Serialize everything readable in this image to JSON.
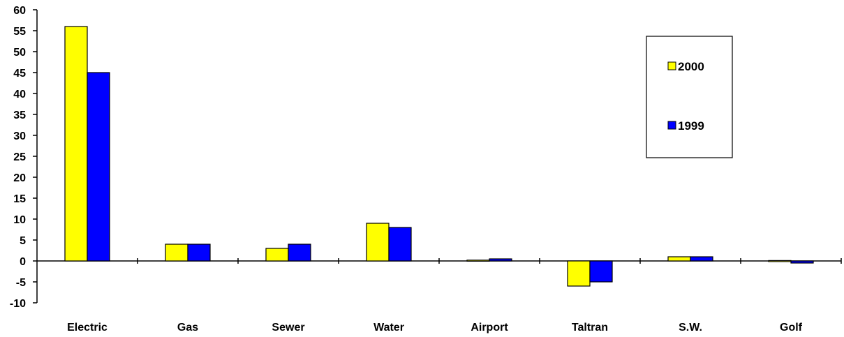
{
  "chart_data": {
    "type": "bar",
    "title": "",
    "xlabel": "",
    "ylabel": "",
    "categories": [
      "Electric",
      "Gas",
      "Sewer",
      "Water",
      "Airport",
      "Taltran",
      "S.W.",
      "Golf"
    ],
    "series": [
      {
        "name": "2000",
        "color": "#ffff00",
        "values": [
          56,
          4,
          3,
          9,
          0.2,
          -6,
          1,
          0.1
        ]
      },
      {
        "name": "1999",
        "color": "#0000ff",
        "values": [
          45,
          4,
          4,
          8,
          0.5,
          -5,
          1,
          -0.5
        ]
      }
    ],
    "ylim": [
      -10,
      60
    ],
    "yticks": [
      "-10",
      "-5",
      "0",
      "5",
      "10",
      "15",
      "20",
      "25",
      "30",
      "35",
      "40",
      "45",
      "50",
      "55",
      "60"
    ],
    "grid": false,
    "legend": {
      "position": "right",
      "entries": [
        "2000",
        "1999"
      ]
    }
  }
}
